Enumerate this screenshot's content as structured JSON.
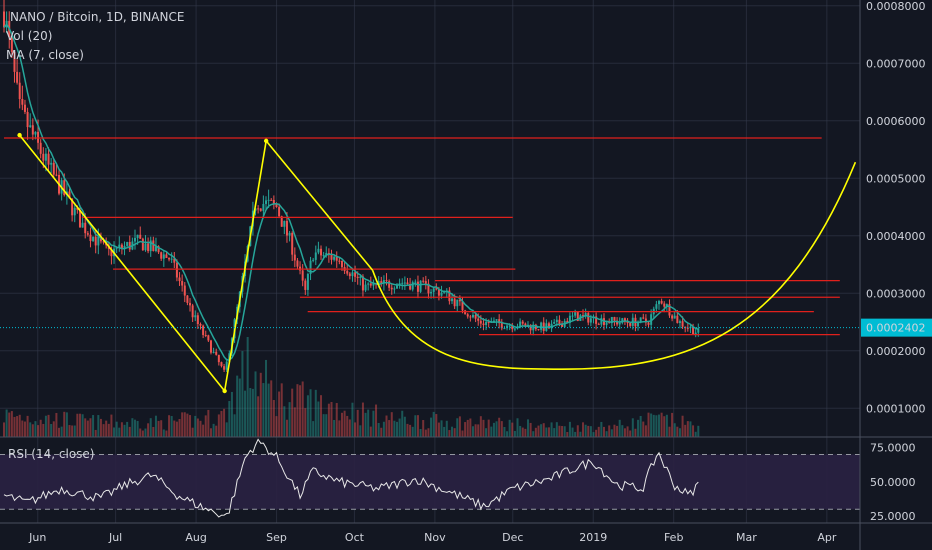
{
  "legend": {
    "title": "NANO / Bitcoin, 1D, BINANCE",
    "vol": "Vol (20)",
    "ma": "MA (7, close)"
  },
  "rsi_legend": "RSI (14, close)",
  "last_price_label": "0.0002402",
  "colors": {
    "background": "#131722",
    "grid": "#363c4e",
    "up": "#26a69a",
    "down": "#ef5350",
    "ma": "#26a69a",
    "levels": "#e0201c",
    "drawing": "#ffff00",
    "rsi": "#e8e8e8",
    "rsi_band": "#2a2143",
    "last_price": "#00bcd4"
  },
  "chart_data": [
    {
      "type": "candlestick",
      "x_axis": {
        "tick_labels": [
          "Jun",
          "Jul",
          "Aug",
          "Sep",
          "Oct",
          "Nov",
          "Dec",
          "2019",
          "Feb",
          "Mar",
          "Apr"
        ]
      },
      "y_axis": {
        "ylim": [
          5e-05,
          0.00081
        ],
        "ticks": [
          0.0008,
          0.0007,
          0.0006,
          0.0005,
          0.0004,
          0.0003,
          0.0002,
          0.0001
        ],
        "tick_labels": [
          "0.0008000",
          "0.0007000",
          "0.0006000",
          "0.0005000",
          "0.0004000",
          "0.0003000",
          "0.0002000",
          "0.0001000"
        ]
      },
      "last_price": 0.0002402,
      "price_path": [
        [
          "2018-05-19",
          0.00079
        ],
        [
          "2018-05-25",
          0.00062
        ],
        [
          "2018-06-05",
          0.00052
        ],
        [
          "2018-06-18",
          0.00042
        ],
        [
          "2018-06-28",
          0.00037
        ],
        [
          "2018-07-10",
          0.00039
        ],
        [
          "2018-07-22",
          0.00036
        ],
        [
          "2018-07-31",
          0.00026
        ],
        [
          "2018-08-12",
          0.00016
        ],
        [
          "2018-08-18",
          0.0003
        ],
        [
          "2018-08-24",
          0.00046
        ],
        [
          "2018-09-01",
          0.00045
        ],
        [
          "2018-09-07",
          0.00038
        ],
        [
          "2018-09-12",
          0.0003
        ],
        [
          "2018-09-15",
          0.00037
        ],
        [
          "2018-09-25",
          0.00036
        ],
        [
          "2018-10-05",
          0.00031
        ],
        [
          "2018-10-20",
          0.00032
        ],
        [
          "2018-11-05",
          0.0003
        ],
        [
          "2018-11-18",
          0.00025
        ],
        [
          "2018-12-15",
          0.00024
        ],
        [
          "2018-12-25",
          0.00026
        ],
        [
          "2019-01-10",
          0.00025
        ],
        [
          "2019-01-22",
          0.00025
        ],
        [
          "2019-01-27",
          0.00029
        ],
        [
          "2019-02-03",
          0.00025
        ],
        [
          "2019-02-11",
          0.00023
        ]
      ],
      "horizontal_levels": [
        {
          "price": 0.00057,
          "from": "2018-05-19",
          "to": "2019-03-30"
        },
        {
          "price": 0.000432,
          "from": "2018-06-18",
          "to": "2018-12-01"
        },
        {
          "price": 0.000342,
          "from": "2018-06-30",
          "to": "2018-12-02"
        },
        {
          "price": 0.000322,
          "from": "2018-11-01",
          "to": "2019-04-06"
        },
        {
          "price": 0.000293,
          "from": "2018-09-10",
          "to": "2019-04-06"
        },
        {
          "price": 0.000268,
          "from": "2018-09-13",
          "to": "2019-03-27"
        },
        {
          "price": 0.000228,
          "from": "2018-11-18",
          "to": "2019-04-06"
        }
      ],
      "trend_lines": [
        [
          [
            "2018-05-25",
            0.000575
          ],
          [
            "2018-08-12",
            0.00013
          ]
        ],
        [
          [
            "2018-08-12",
            0.00013
          ],
          [
            "2018-08-28",
            0.000565
          ]
        ],
        [
          [
            "2018-08-28",
            0.000565
          ],
          [
            "2018-10-08",
            0.00034
          ]
        ]
      ],
      "arc": {
        "start": [
          "2018-10-08",
          0.00034
        ],
        "bottom": [
          "2018-12-20",
          0.000168
        ],
        "end": [
          "2019-04-12",
          0.000528
        ]
      }
    },
    {
      "type": "bar",
      "name": "Vol (20)",
      "volume_path": [
        [
          "2018-05-19",
          0.3
        ],
        [
          "2018-06-25",
          0.2
        ],
        [
          "2018-07-20",
          0.2
        ],
        [
          "2018-08-05",
          0.25
        ],
        [
          "2018-08-12",
          0.3
        ],
        [
          "2018-08-20",
          1.0
        ],
        [
          "2018-09-01",
          0.55
        ],
        [
          "2018-09-12",
          0.5
        ],
        [
          "2018-09-25",
          0.4
        ],
        [
          "2018-10-15",
          0.25
        ],
        [
          "2018-11-15",
          0.2
        ],
        [
          "2018-12-15",
          0.15
        ],
        [
          "2019-01-10",
          0.15
        ],
        [
          "2019-01-26",
          0.25
        ],
        [
          "2019-02-11",
          0.15
        ]
      ]
    },
    {
      "type": "line",
      "name": "RSI (14, close)",
      "y_axis": {
        "ylim": [
          20,
          82
        ],
        "ticks": [
          75,
          50,
          25
        ],
        "tick_labels": [
          "75.0000",
          "50.0000",
          "25.0000"
        ]
      },
      "band": [
        30,
        70
      ],
      "rsi_path": [
        [
          "2018-05-19",
          40
        ],
        [
          "2018-05-28",
          35
        ],
        [
          "2018-06-10",
          45
        ],
        [
          "2018-06-25",
          38
        ],
        [
          "2018-07-05",
          48
        ],
        [
          "2018-07-15",
          55
        ],
        [
          "2018-07-25",
          40
        ],
        [
          "2018-08-05",
          30
        ],
        [
          "2018-08-13",
          25
        ],
        [
          "2018-08-20",
          68
        ],
        [
          "2018-08-25",
          80
        ],
        [
          "2018-09-01",
          68
        ],
        [
          "2018-09-10",
          40
        ],
        [
          "2018-09-15",
          58
        ],
        [
          "2018-09-25",
          50
        ],
        [
          "2018-10-10",
          45
        ],
        [
          "2018-10-25",
          52
        ],
        [
          "2018-11-10",
          40
        ],
        [
          "2018-11-20",
          32
        ],
        [
          "2018-12-01",
          45
        ],
        [
          "2018-12-15",
          52
        ],
        [
          "2018-12-25",
          60
        ],
        [
          "2019-01-01",
          65
        ],
        [
          "2019-01-10",
          48
        ],
        [
          "2019-01-20",
          45
        ],
        [
          "2019-01-26",
          72
        ],
        [
          "2019-02-01",
          48
        ],
        [
          "2019-02-07",
          40
        ],
        [
          "2019-02-11",
          50
        ]
      ]
    }
  ]
}
